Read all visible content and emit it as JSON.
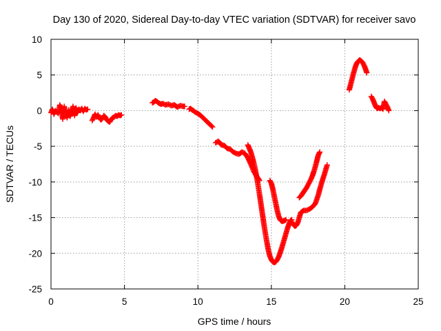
{
  "chart_data": {
    "type": "scatter",
    "title": "Day 130 of 2020, Sidereal Day-to-day VTEC variation (SDTVAR) for receiver savo",
    "xlabel": "GPS time / hours",
    "ylabel": "SDTVAR / TECUs",
    "xlim": [
      0,
      25
    ],
    "ylim": [
      -25,
      10
    ],
    "xticks": [
      0,
      5,
      10,
      15,
      20,
      25
    ],
    "yticks": [
      -25,
      -20,
      -15,
      -10,
      -5,
      0,
      5,
      10
    ],
    "grid": true,
    "marker": "plus",
    "color": "#ff0000",
    "series": [
      {
        "name": "SDTVAR",
        "segments": [
          [
            [
              0.0,
              -0.3
            ],
            [
              0.1,
              0.2
            ],
            [
              0.2,
              -0.5
            ],
            [
              0.3,
              0.0
            ],
            [
              0.5,
              -0.4
            ],
            [
              0.6,
              0.8
            ],
            [
              0.7,
              0.3
            ],
            [
              0.8,
              -1.2
            ],
            [
              0.9,
              0.6
            ],
            [
              1.0,
              -0.6
            ],
            [
              1.1,
              -1.0
            ],
            [
              1.2,
              0.1
            ],
            [
              1.3,
              -0.8
            ],
            [
              1.4,
              -0.2
            ],
            [
              1.5,
              0.6
            ],
            [
              1.6,
              -0.7
            ],
            [
              1.7,
              0.4
            ],
            [
              1.8,
              -0.3
            ],
            [
              1.9,
              0.2
            ],
            [
              2.0,
              0.0
            ],
            [
              2.1,
              0.3
            ],
            [
              2.2,
              -0.1
            ],
            [
              2.3,
              0.3
            ],
            [
              2.4,
              0.1
            ],
            [
              2.5,
              0.2
            ]
          ],
          [
            [
              2.8,
              -1.4
            ],
            [
              2.9,
              -1.0
            ],
            [
              3.0,
              -0.5
            ],
            [
              3.1,
              -0.9
            ],
            [
              3.2,
              -0.6
            ],
            [
              3.3,
              -1.0
            ],
            [
              3.4,
              -1.3
            ],
            [
              3.5,
              -1.1
            ],
            [
              3.6,
              -0.7
            ],
            [
              3.7,
              -0.9
            ],
            [
              3.8,
              -1.3
            ],
            [
              3.9,
              -1.5
            ],
            [
              4.0,
              -1.6
            ],
            [
              4.1,
              -1.2
            ],
            [
              4.2,
              -1.0
            ],
            [
              4.3,
              -0.9
            ],
            [
              4.4,
              -0.7
            ],
            [
              4.5,
              -0.8
            ],
            [
              4.6,
              -0.6
            ],
            [
              4.7,
              -0.7
            ],
            [
              4.8,
              -0.6
            ]
          ],
          [
            [
              6.9,
              1.1
            ],
            [
              7.0,
              1.2
            ],
            [
              7.1,
              1.4
            ],
            [
              7.2,
              1.3
            ],
            [
              7.3,
              1.1
            ],
            [
              7.4,
              1.0
            ],
            [
              7.5,
              0.9
            ],
            [
              7.6,
              1.0
            ],
            [
              7.8,
              0.8
            ],
            [
              8.0,
              0.9
            ],
            [
              8.2,
              0.7
            ],
            [
              8.4,
              0.8
            ],
            [
              8.6,
              0.5
            ],
            [
              8.8,
              0.7
            ],
            [
              9.0,
              0.6
            ],
            [
              9.1,
              0.6
            ]
          ],
          [
            [
              9.4,
              0.2
            ],
            [
              9.5,
              0.3
            ],
            [
              9.6,
              0.1
            ],
            [
              9.7,
              0.0
            ],
            [
              9.8,
              -0.2
            ],
            [
              10.0,
              -0.4
            ],
            [
              10.2,
              -0.7
            ],
            [
              10.4,
              -1.1
            ],
            [
              10.6,
              -1.5
            ],
            [
              10.8,
              -1.9
            ],
            [
              11.0,
              -2.3
            ]
          ],
          [
            [
              11.2,
              -4.5
            ],
            [
              11.4,
              -4.3
            ],
            [
              11.6,
              -4.8
            ],
            [
              11.8,
              -4.9
            ],
            [
              12.0,
              -5.3
            ],
            [
              12.2,
              -5.4
            ],
            [
              12.4,
              -5.8
            ],
            [
              12.6,
              -6.0
            ],
            [
              12.8,
              -6.1
            ],
            [
              13.0,
              -5.8
            ],
            [
              13.2,
              -6.0
            ],
            [
              13.4,
              -6.6
            ],
            [
              13.6,
              -7.5
            ],
            [
              13.8,
              -8.5
            ],
            [
              14.0,
              -9.2
            ],
            [
              14.2,
              -9.8
            ]
          ],
          [
            [
              13.4,
              -4.8
            ],
            [
              13.5,
              -5.3
            ],
            [
              13.6,
              -5.8
            ],
            [
              13.7,
              -6.5
            ],
            [
              13.8,
              -7.3
            ],
            [
              13.9,
              -8.2
            ],
            [
              14.0,
              -9.3
            ],
            [
              14.1,
              -10.5
            ],
            [
              14.2,
              -11.8
            ],
            [
              14.3,
              -13.2
            ],
            [
              14.4,
              -14.6
            ],
            [
              14.5,
              -16.0
            ],
            [
              14.6,
              -17.3
            ],
            [
              14.7,
              -18.5
            ],
            [
              14.8,
              -19.6
            ],
            [
              14.9,
              -20.4
            ],
            [
              15.0,
              -20.9
            ],
            [
              15.1,
              -21.2
            ],
            [
              15.2,
              -21.3
            ],
            [
              15.3,
              -21.2
            ],
            [
              15.4,
              -20.9
            ],
            [
              15.5,
              -20.5
            ],
            [
              15.6,
              -19.9
            ],
            [
              15.7,
              -19.3
            ],
            [
              15.8,
              -18.6
            ],
            [
              15.9,
              -17.9
            ],
            [
              16.0,
              -17.2
            ],
            [
              16.1,
              -16.5
            ],
            [
              16.2,
              -15.9
            ],
            [
              16.3,
              -15.4
            ],
            [
              16.4,
              -15.3
            ]
          ],
          [
            [
              14.9,
              -9.8
            ],
            [
              15.0,
              -10.2
            ],
            [
              15.1,
              -11.0
            ],
            [
              15.2,
              -12.0
            ],
            [
              15.3,
              -13.0
            ],
            [
              15.4,
              -14.0
            ],
            [
              15.5,
              -14.8
            ],
            [
              15.6,
              -15.3
            ],
            [
              15.7,
              -15.5
            ],
            [
              15.8,
              -15.5
            ],
            [
              15.9,
              -15.4
            ],
            [
              16.0,
              -15.3
            ]
          ],
          [
            [
              16.4,
              -15.6
            ],
            [
              16.5,
              -16.0
            ],
            [
              16.6,
              -16.2
            ],
            [
              16.7,
              -16.1
            ],
            [
              16.8,
              -15.7
            ],
            [
              16.9,
              -15.0
            ],
            [
              17.0,
              -14.3
            ]
          ],
          [
            [
              16.9,
              -12.2
            ],
            [
              17.0,
              -12.0
            ],
            [
              17.1,
              -11.7
            ],
            [
              17.2,
              -11.4
            ],
            [
              17.3,
              -11.1
            ],
            [
              17.4,
              -10.8
            ],
            [
              17.5,
              -10.4
            ],
            [
              17.6,
              -10.0
            ],
            [
              17.7,
              -9.6
            ],
            [
              17.8,
              -9.1
            ],
            [
              17.9,
              -8.5
            ],
            [
              18.0,
              -7.8
            ],
            [
              18.1,
              -7.0
            ],
            [
              18.2,
              -6.2
            ],
            [
              18.3,
              -5.8
            ]
          ],
          [
            [
              17.0,
              -14.3
            ],
            [
              17.2,
              -14.0
            ],
            [
              17.4,
              -14.0
            ],
            [
              17.6,
              -13.8
            ],
            [
              17.8,
              -13.5
            ],
            [
              18.0,
              -13.0
            ],
            [
              18.2,
              -11.8
            ],
            [
              18.3,
              -11.0
            ],
            [
              18.4,
              -10.3
            ],
            [
              18.5,
              -9.6
            ],
            [
              18.6,
              -9.0
            ],
            [
              18.7,
              -8.3
            ],
            [
              18.8,
              -7.6
            ]
          ],
          [
            [
              20.3,
              2.9
            ],
            [
              20.4,
              3.7
            ],
            [
              20.5,
              4.5
            ],
            [
              20.6,
              5.3
            ],
            [
              20.7,
              6.0
            ],
            [
              20.8,
              6.6
            ],
            [
              20.9,
              6.9
            ],
            [
              21.0,
              7.1
            ],
            [
              21.1,
              7.0
            ],
            [
              21.2,
              6.8
            ],
            [
              21.3,
              6.4
            ],
            [
              21.4,
              5.9
            ],
            [
              21.5,
              5.3
            ]
          ],
          [
            [
              21.8,
              2.0
            ],
            [
              21.9,
              1.6
            ],
            [
              22.0,
              1.1
            ],
            [
              22.1,
              0.6
            ],
            [
              22.2,
              0.3
            ],
            [
              22.3,
              0.4
            ],
            [
              22.4,
              0.3
            ],
            [
              22.5,
              0.4
            ],
            [
              22.6,
              0.2
            ],
            [
              22.7,
              1.3
            ],
            [
              22.8,
              0.9
            ],
            [
              22.9,
              0.5
            ],
            [
              23.0,
              0.0
            ]
          ]
        ]
      }
    ]
  }
}
